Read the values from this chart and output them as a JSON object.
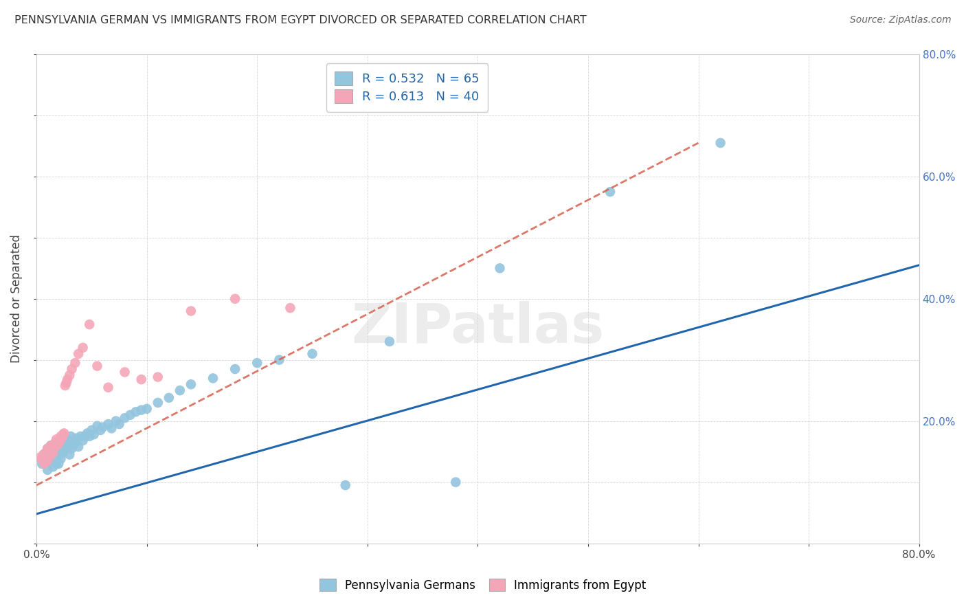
{
  "title": "PENNSYLVANIA GERMAN VS IMMIGRANTS FROM EGYPT DIVORCED OR SEPARATED CORRELATION CHART",
  "source": "Source: ZipAtlas.com",
  "ylabel": "Divorced or Separated",
  "legend_label1": "Pennsylvania Germans",
  "legend_label2": "Immigrants from Egypt",
  "r1": "0.532",
  "n1": "65",
  "r2": "0.613",
  "n2": "40",
  "color_blue": "#92c5de",
  "color_pink": "#f4a6b8",
  "line_color_blue": "#2166ac",
  "line_color_pink": "#d6604d",
  "watermark": "ZIPatlas",
  "xlim": [
    0.0,
    0.8
  ],
  "ylim": [
    0.0,
    0.8
  ],
  "blue_line_x": [
    0.0,
    0.8
  ],
  "blue_line_y": [
    0.048,
    0.455
  ],
  "pink_line_x": [
    0.0,
    0.6
  ],
  "pink_line_y": [
    0.095,
    0.655
  ],
  "blue_points_x": [
    0.005,
    0.008,
    0.01,
    0.01,
    0.012,
    0.013,
    0.015,
    0.015,
    0.016,
    0.017,
    0.018,
    0.018,
    0.019,
    0.02,
    0.02,
    0.021,
    0.022,
    0.022,
    0.023,
    0.024,
    0.025,
    0.026,
    0.027,
    0.028,
    0.03,
    0.031,
    0.032,
    0.033,
    0.035,
    0.036,
    0.038,
    0.04,
    0.042,
    0.044,
    0.046,
    0.048,
    0.05,
    0.052,
    0.055,
    0.058,
    0.06,
    0.065,
    0.068,
    0.072,
    0.075,
    0.08,
    0.085,
    0.09,
    0.095,
    0.1,
    0.11,
    0.12,
    0.13,
    0.14,
    0.16,
    0.18,
    0.2,
    0.22,
    0.25,
    0.28,
    0.32,
    0.38,
    0.42,
    0.52,
    0.62
  ],
  "blue_points_y": [
    0.13,
    0.145,
    0.12,
    0.155,
    0.135,
    0.16,
    0.125,
    0.15,
    0.14,
    0.165,
    0.13,
    0.155,
    0.148,
    0.13,
    0.16,
    0.145,
    0.138,
    0.17,
    0.155,
    0.148,
    0.16,
    0.155,
    0.165,
    0.17,
    0.145,
    0.175,
    0.155,
    0.16,
    0.165,
    0.172,
    0.158,
    0.175,
    0.168,
    0.175,
    0.18,
    0.175,
    0.185,
    0.178,
    0.192,
    0.185,
    0.19,
    0.195,
    0.188,
    0.2,
    0.195,
    0.205,
    0.21,
    0.215,
    0.218,
    0.22,
    0.23,
    0.238,
    0.25,
    0.26,
    0.27,
    0.285,
    0.295,
    0.3,
    0.31,
    0.095,
    0.33,
    0.1,
    0.45,
    0.575,
    0.655
  ],
  "pink_points_x": [
    0.003,
    0.005,
    0.006,
    0.007,
    0.008,
    0.009,
    0.01,
    0.01,
    0.011,
    0.012,
    0.013,
    0.014,
    0.015,
    0.016,
    0.017,
    0.018,
    0.019,
    0.02,
    0.021,
    0.022,
    0.023,
    0.024,
    0.025,
    0.026,
    0.027,
    0.028,
    0.03,
    0.032,
    0.035,
    0.038,
    0.042,
    0.048,
    0.055,
    0.065,
    0.08,
    0.095,
    0.11,
    0.14,
    0.18,
    0.23
  ],
  "pink_points_y": [
    0.14,
    0.138,
    0.145,
    0.13,
    0.148,
    0.142,
    0.135,
    0.155,
    0.15,
    0.142,
    0.16,
    0.155,
    0.148,
    0.162,
    0.158,
    0.17,
    0.165,
    0.162,
    0.168,
    0.175,
    0.172,
    0.178,
    0.18,
    0.258,
    0.262,
    0.268,
    0.275,
    0.285,
    0.295,
    0.31,
    0.32,
    0.358,
    0.29,
    0.255,
    0.28,
    0.268,
    0.272,
    0.38,
    0.4,
    0.385
  ]
}
